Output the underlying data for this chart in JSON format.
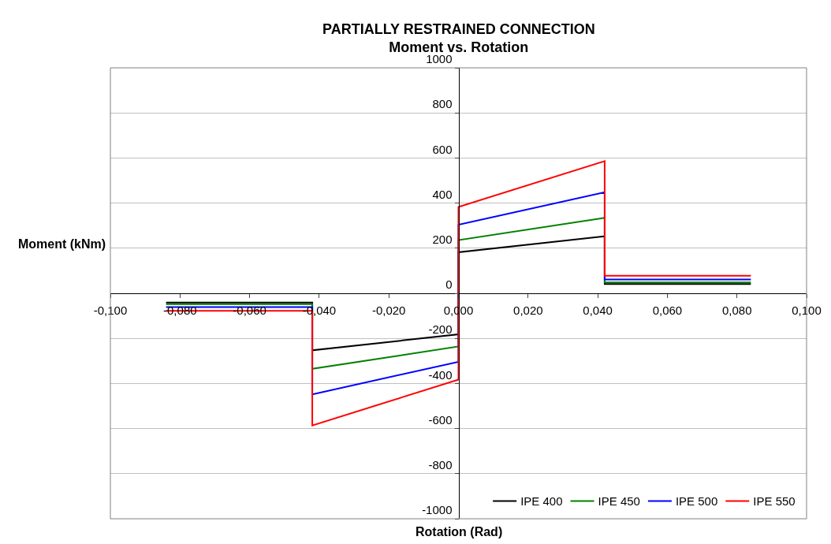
{
  "chart_data": {
    "type": "line",
    "title": "PARTIALLY RESTRAINED CONNECTION",
    "subtitle": "Moment vs. Rotation",
    "xlabel": "Rotation (Rad)",
    "ylabel": "Moment (kNm)",
    "x": [
      -0.084,
      -0.042,
      -0.042,
      0,
      0,
      0.042,
      0.042,
      0.084
    ],
    "series": [
      {
        "name": "IPE 400",
        "color": "#000000",
        "values": [
          -41,
          -41,
          -253,
          -182,
          182,
          253,
          41,
          41
        ]
      },
      {
        "name": "IPE 450",
        "color": "#008000",
        "values": [
          -48,
          -48,
          -335,
          -236,
          236,
          335,
          48,
          48
        ]
      },
      {
        "name": "IPE 500",
        "color": "#0000ff",
        "values": [
          -61,
          -61,
          -448,
          -304,
          304,
          448,
          61,
          61
        ]
      },
      {
        "name": "IPE 550",
        "color": "#ff0000",
        "values": [
          -78,
          -78,
          -586,
          -383,
          383,
          586,
          78,
          78
        ]
      }
    ],
    "xlim": [
      -0.1,
      0.1
    ],
    "xticks": [
      {
        "value": -0.1,
        "label": "-0,100"
      },
      {
        "value": -0.08,
        "label": "-0,080"
      },
      {
        "value": -0.06,
        "label": "-0,060"
      },
      {
        "value": -0.04,
        "label": "-0,040"
      },
      {
        "value": -0.02,
        "label": "-0,020"
      },
      {
        "value": 0,
        "label": "0,000"
      },
      {
        "value": 0.02,
        "label": "0,020"
      },
      {
        "value": 0.04,
        "label": "0,040"
      },
      {
        "value": 0.06,
        "label": "0,060"
      },
      {
        "value": 0.08,
        "label": "0,080"
      },
      {
        "value": 0.1,
        "label": "0,100"
      }
    ],
    "ylim": [
      -1000,
      1000
    ],
    "yticks": [
      -1000,
      -800,
      -600,
      -400,
      -200,
      0,
      200,
      400,
      600,
      800,
      1000
    ],
    "grid": "y",
    "legend": "bottom right",
    "marker": "none",
    "line_style": "solid"
  }
}
